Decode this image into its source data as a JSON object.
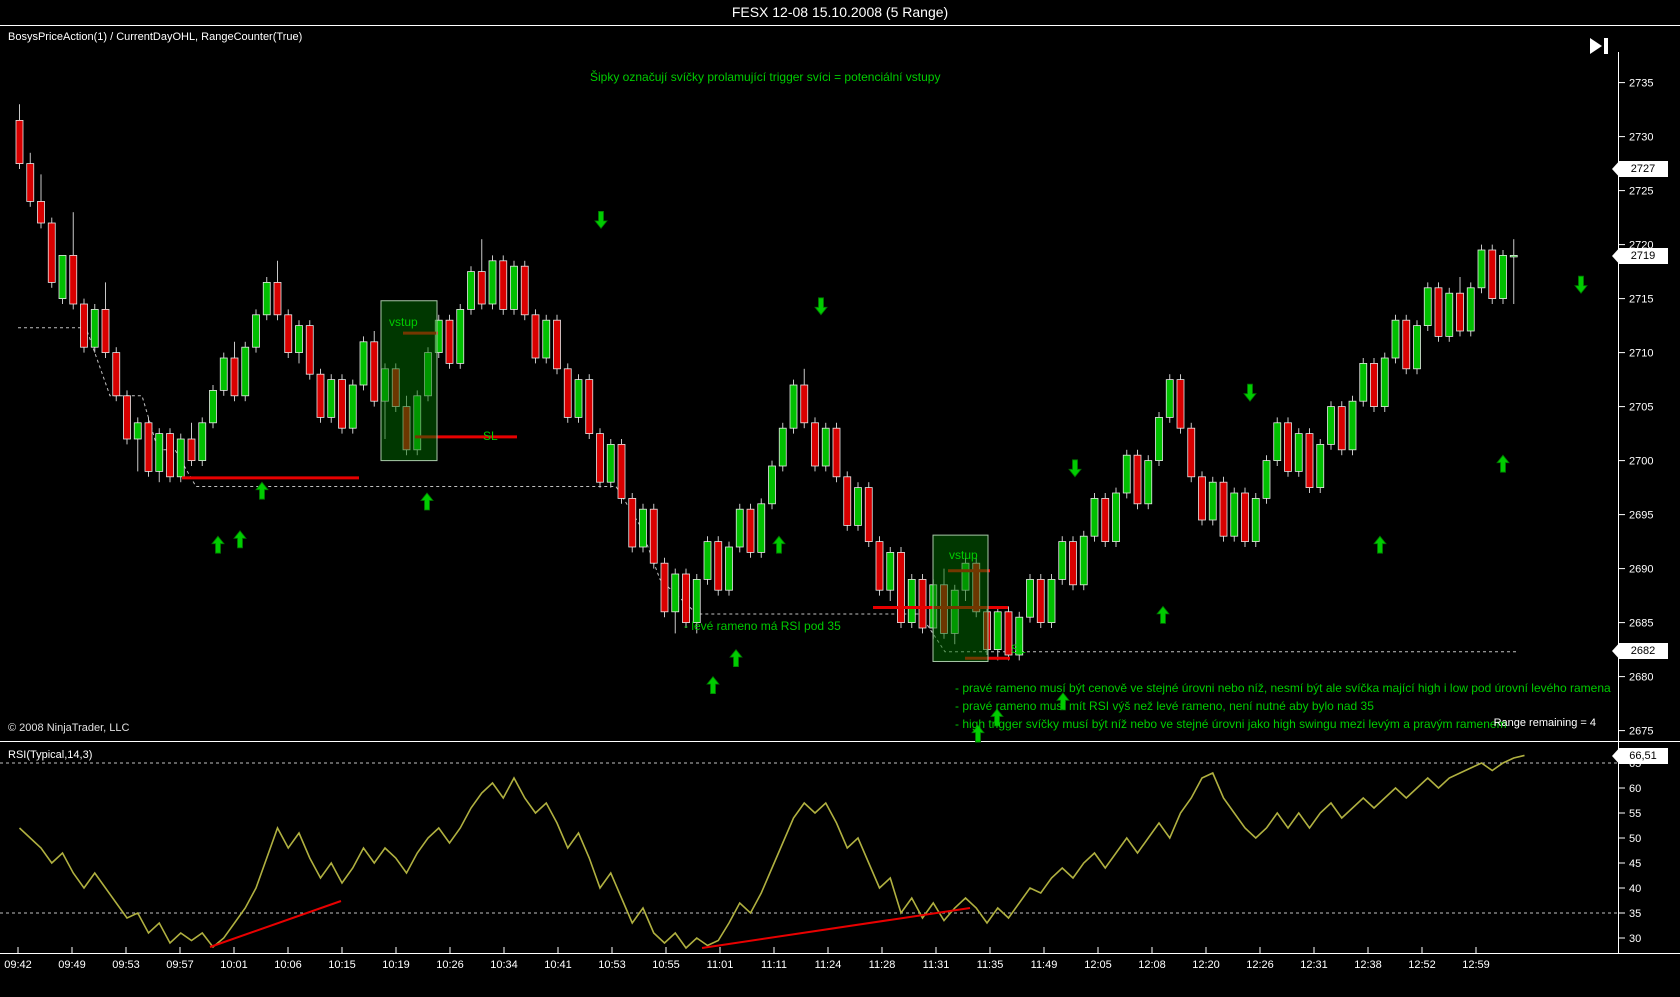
{
  "window": {
    "title": "FESX 12-08  15.10.2008 (5 Range)"
  },
  "toolbar": {
    "indicators_label": "BosysPriceAction(1) / CurrentDayOHL, RangeCounter(True)",
    "go_to_end_icon": "skip-to-end"
  },
  "annotations": {
    "arrows_note": "Šipky označují svíčky prolamující trigger svíci = potenciální vstupy",
    "left_shoulder_note": "- levé rameno má RSI pod 35",
    "rules": [
      "- pravé rameno musí být cenově ve stejné úrovni nebo níž, nesmí být ale svíčka mající high i low pod úrovní levého ramena",
      "- pravé rameno musí mít RSI výš než levé rameno, není nutné aby bylo nad 35",
      "- high trigger svíčky musí být níž nebo ve stejné úrovni jako high swingu mezi levým a pravým ramenem"
    ],
    "entry_box_label": "vstup",
    "stop_loss_label": "SL",
    "range_remaining": "Range remaining = 4",
    "copyright": "© 2008 NinjaTrader, LLC"
  },
  "price_axis": {
    "ticks": [
      2735,
      2730,
      2725,
      2720,
      2715,
      2710,
      2705,
      2700,
      2695,
      2690,
      2685,
      2680,
      2675
    ],
    "tags": {
      "open": "2727",
      "last": "2719",
      "low": "2682"
    }
  },
  "time_axis": {
    "labels": [
      "09:42",
      "09:49",
      "09:53",
      "09:57",
      "10:01",
      "10:06",
      "10:15",
      "10:19",
      "10:26",
      "10:34",
      "10:41",
      "10:53",
      "10:55",
      "11:01",
      "11:11",
      "11:24",
      "11:28",
      "11:31",
      "11:35",
      "11:49",
      "12:05",
      "12:08",
      "12:20",
      "12:26",
      "12:31",
      "12:38",
      "12:52",
      "12:59"
    ]
  },
  "rsi_panel": {
    "label": "RSI(Typical,14,3)",
    "ticks": [
      65,
      60,
      55,
      50,
      45,
      40,
      35,
      30
    ],
    "tag": "66,51",
    "dashed_levels": [
      65,
      35
    ]
  },
  "colors": {
    "background": "#000000",
    "up_candle": "#00C000",
    "down_candle": "#D80000",
    "wick": "#C8C8C8",
    "candle_border": "#E8E8E8",
    "annotation_green": "#00CC00",
    "rsi_line": "#B0B040",
    "red_line": "#E80000",
    "box_fill": "rgba(0,110,0,0.5)",
    "box_border": "#A8C8A8",
    "dashed_line": "#C0C0C0",
    "axis_text": "#FFFFFF",
    "tag_bg": "#FFFFFF",
    "tag_text": "#000000"
  },
  "chart_data": {
    "type": "candlestick",
    "title": "FESX 12-08  15.10.2008 (5 Range)",
    "main": {
      "ylabel": "price",
      "ylim": [
        2675,
        2735
      ],
      "grid": false,
      "ohlc": [
        [
          2731.5,
          2733,
          2727,
          2727.5
        ],
        [
          2727.5,
          2728.5,
          2723.5,
          2724
        ],
        [
          2724,
          2726.5,
          2721.5,
          2722
        ],
        [
          2722,
          2722.5,
          2716,
          2716.5
        ],
        [
          2715,
          2719,
          2714.5,
          2719
        ],
        [
          2719,
          2723,
          2714,
          2714.5
        ],
        [
          2714.5,
          2715,
          2710,
          2710.5
        ],
        [
          2710.5,
          2714.5,
          2710,
          2714
        ],
        [
          2714,
          2716.5,
          2709.5,
          2710
        ],
        [
          2710,
          2710.5,
          2705.5,
          2706
        ],
        [
          2706,
          2706.5,
          2701.5,
          2702
        ],
        [
          2702,
          2704,
          2699,
          2703.5
        ],
        [
          2703.5,
          2704,
          2698.5,
          2699
        ],
        [
          2699,
          2703,
          2698,
          2702.5
        ],
        [
          2702.5,
          2703,
          2698,
          2698.5
        ],
        [
          2698.5,
          2702.5,
          2698,
          2702
        ],
        [
          2702,
          2703.5,
          2699.5,
          2700
        ],
        [
          2700,
          2704,
          2699.5,
          2703.5
        ],
        [
          2703.5,
          2707,
          2703,
          2706.5
        ],
        [
          2706.5,
          2710,
          2706,
          2709.5
        ],
        [
          2709.5,
          2711,
          2705.5,
          2706
        ],
        [
          2706,
          2711,
          2705.5,
          2710.5
        ],
        [
          2710.5,
          2714,
          2710,
          2713.5
        ],
        [
          2713.5,
          2717,
          2713,
          2716.5
        ],
        [
          2716.5,
          2718.5,
          2713,
          2713.5
        ],
        [
          2713.5,
          2714,
          2709.5,
          2710
        ],
        [
          2710,
          2713,
          2709,
          2712.5
        ],
        [
          2712.5,
          2713,
          2707.5,
          2708
        ],
        [
          2708,
          2708.5,
          2703.5,
          2704
        ],
        [
          2704,
          2708,
          2703.5,
          2707.5
        ],
        [
          2707.5,
          2708,
          2702.5,
          2703
        ],
        [
          2703,
          2707.5,
          2702.5,
          2707
        ],
        [
          2707,
          2711.5,
          2706.5,
          2711
        ],
        [
          2711,
          2712,
          2705,
          2705.5
        ],
        [
          2705.5,
          2709,
          2702,
          2708.5
        ],
        [
          2708.5,
          2709,
          2704.5,
          2705
        ],
        [
          2705,
          2706,
          2700.5,
          2701
        ],
        [
          2701,
          2706.5,
          2700.5,
          2706
        ],
        [
          2706,
          2710.5,
          2705.5,
          2710
        ],
        [
          2710,
          2713.5,
          2709.5,
          2713
        ],
        [
          2713,
          2713.5,
          2708.5,
          2709
        ],
        [
          2709,
          2714.5,
          2708.5,
          2714
        ],
        [
          2714,
          2718,
          2713.5,
          2717.5
        ],
        [
          2717.5,
          2720.5,
          2714,
          2714.5
        ],
        [
          2714.5,
          2719,
          2714,
          2718.5
        ],
        [
          2718.5,
          2719,
          2713.5,
          2714
        ],
        [
          2714,
          2718.5,
          2713.5,
          2718
        ],
        [
          2718,
          2718.5,
          2713,
          2713.5
        ],
        [
          2713.5,
          2714,
          2709,
          2709.5
        ],
        [
          2709.5,
          2713.5,
          2709,
          2713
        ],
        [
          2713,
          2713.5,
          2708,
          2708.5
        ],
        [
          2708.5,
          2709,
          2703.5,
          2704
        ],
        [
          2704,
          2708,
          2703.5,
          2707.5
        ],
        [
          2707.5,
          2708,
          2702,
          2702.5
        ],
        [
          2702.5,
          2703,
          2697.5,
          2698
        ],
        [
          2698,
          2702,
          2697.5,
          2701.5
        ],
        [
          2701.5,
          2702,
          2696,
          2696.5
        ],
        [
          2696.5,
          2697,
          2691.5,
          2692
        ],
        [
          2692,
          2696,
          2691.5,
          2695.5
        ],
        [
          2695.5,
          2696,
          2690,
          2690.5
        ],
        [
          2690.5,
          2691,
          2685.5,
          2686
        ],
        [
          2686,
          2690,
          2684,
          2689.5
        ],
        [
          2689.5,
          2690,
          2684.5,
          2685
        ],
        [
          2685,
          2689.5,
          2684,
          2689
        ],
        [
          2689,
          2693,
          2688.5,
          2692.5
        ],
        [
          2692.5,
          2693,
          2687.5,
          2688
        ],
        [
          2688,
          2692.5,
          2687.5,
          2692
        ],
        [
          2692,
          2696,
          2691.5,
          2695.5
        ],
        [
          2695.5,
          2696,
          2691,
          2691.5
        ],
        [
          2691.5,
          2696.5,
          2691,
          2696
        ],
        [
          2696,
          2700,
          2695.5,
          2699.5
        ],
        [
          2699.5,
          2703.5,
          2699,
          2703
        ],
        [
          2703,
          2707.5,
          2702.5,
          2707
        ],
        [
          2707,
          2708.5,
          2703,
          2703.5
        ],
        [
          2703.5,
          2704,
          2699,
          2699.5
        ],
        [
          2699.5,
          2703.5,
          2699,
          2703
        ],
        [
          2703,
          2703.5,
          2698,
          2698.5
        ],
        [
          2698.5,
          2699,
          2693.5,
          2694
        ],
        [
          2694,
          2698,
          2693.5,
          2697.5
        ],
        [
          2697.5,
          2698,
          2692,
          2692.5
        ],
        [
          2692.5,
          2693,
          2687.5,
          2688
        ],
        [
          2688,
          2692,
          2687,
          2691.5
        ],
        [
          2691.5,
          2692,
          2684.5,
          2685
        ],
        [
          2685,
          2689.5,
          2684.5,
          2689
        ],
        [
          2689,
          2689.5,
          2684,
          2684.5
        ],
        [
          2684.5,
          2689,
          2683.5,
          2688.5
        ],
        [
          2688.5,
          2690,
          2683.5,
          2684
        ],
        [
          2684,
          2688.5,
          2683,
          2688
        ],
        [
          2688,
          2691,
          2687,
          2690.5
        ],
        [
          2690.5,
          2691,
          2685.5,
          2686
        ],
        [
          2686,
          2686.5,
          2682,
          2682.5
        ],
        [
          2682.5,
          2686.5,
          2681.5,
          2686
        ],
        [
          2686,
          2686.5,
          2681.5,
          2682
        ],
        [
          2682,
          2686,
          2681.5,
          2685.5
        ],
        [
          2685.5,
          2689.5,
          2685,
          2689
        ],
        [
          2689,
          2689.5,
          2684.5,
          2685
        ],
        [
          2685,
          2689.5,
          2684.5,
          2689
        ],
        [
          2689,
          2693,
          2688.5,
          2692.5
        ],
        [
          2692.5,
          2693,
          2688,
          2688.5
        ],
        [
          2688.5,
          2693.5,
          2688,
          2693
        ],
        [
          2693,
          2697,
          2692.5,
          2696.5
        ],
        [
          2696.5,
          2697,
          2692,
          2692.5
        ],
        [
          2692.5,
          2697.5,
          2692,
          2697
        ],
        [
          2697,
          2701,
          2696.5,
          2700.5
        ],
        [
          2700.5,
          2701,
          2695.5,
          2696
        ],
        [
          2696,
          2700.5,
          2695.5,
          2700
        ],
        [
          2700,
          2704.5,
          2699.5,
          2704
        ],
        [
          2704,
          2708,
          2703.5,
          2707.5
        ],
        [
          2707.5,
          2708,
          2702.5,
          2703
        ],
        [
          2703,
          2703.5,
          2698,
          2698.5
        ],
        [
          2698.5,
          2699,
          2694,
          2694.5
        ],
        [
          2694.5,
          2698.5,
          2694,
          2698
        ],
        [
          2698,
          2698.5,
          2692.5,
          2693
        ],
        [
          2693,
          2697.5,
          2692.5,
          2697
        ],
        [
          2697,
          2697.5,
          2692,
          2692.5
        ],
        [
          2692.5,
          2697,
          2692,
          2696.5
        ],
        [
          2696.5,
          2700.5,
          2696,
          2700
        ],
        [
          2700,
          2704,
          2699.5,
          2703.5
        ],
        [
          2703.5,
          2704,
          2698.5,
          2699
        ],
        [
          2699,
          2703,
          2698.5,
          2702.5
        ],
        [
          2702.5,
          2703,
          2697,
          2697.5
        ],
        [
          2697.5,
          2702,
          2697,
          2701.5
        ],
        [
          2701.5,
          2705.5,
          2701,
          2705
        ],
        [
          2705,
          2705.5,
          2700.5,
          2701
        ],
        [
          2701,
          2706,
          2700.5,
          2705.5
        ],
        [
          2705.5,
          2709.5,
          2705,
          2709
        ],
        [
          2709,
          2709.5,
          2704.5,
          2705
        ],
        [
          2705,
          2710,
          2704.5,
          2709.5
        ],
        [
          2709.5,
          2713.5,
          2709,
          2713
        ],
        [
          2713,
          2713.5,
          2708,
          2708.5
        ],
        [
          2708.5,
          2713,
          2708,
          2712.5
        ],
        [
          2712.5,
          2716.5,
          2712,
          2716
        ],
        [
          2716,
          2716.5,
          2711,
          2711.5
        ],
        [
          2711.5,
          2716,
          2711,
          2715.5
        ],
        [
          2715.5,
          2717,
          2711.5,
          2712
        ],
        [
          2712,
          2716.5,
          2711.5,
          2716
        ],
        [
          2716,
          2720,
          2715.5,
          2719.5
        ],
        [
          2719.5,
          2720,
          2714.5,
          2715
        ],
        [
          2715,
          2719.5,
          2714.5,
          2719
        ],
        [
          2719,
          2720.5,
          2714.5,
          2719
        ]
      ]
    },
    "rsi": {
      "name": "RSI(Typical,14,3)",
      "last_value": 66.51,
      "ylim": [
        28,
        67
      ],
      "values": [
        52,
        50,
        48,
        45,
        47,
        43,
        40,
        43,
        40,
        37,
        34,
        35,
        31,
        33,
        29,
        31,
        29.5,
        31,
        28.2,
        30,
        33,
        36,
        40,
        46,
        52,
        48,
        51,
        46,
        42,
        45,
        41,
        44,
        48,
        45,
        48,
        46,
        43,
        47,
        50,
        52,
        49,
        52,
        56,
        59,
        61,
        58,
        62,
        58,
        55,
        57,
        53,
        48,
        51,
        46,
        40,
        43,
        38,
        33,
        36,
        31,
        29,
        31,
        28,
        30,
        28.5,
        29.5,
        33,
        37,
        35,
        39,
        44,
        49,
        54,
        57,
        55,
        57,
        53,
        48,
        50,
        45,
        40,
        42,
        35,
        38,
        34,
        37,
        33.5,
        36,
        38,
        36,
        33,
        36,
        34,
        37,
        40,
        39,
        42,
        44,
        42,
        45,
        47,
        44,
        47,
        50,
        47,
        50,
        53,
        50,
        55,
        58,
        62,
        63,
        58,
        55,
        52,
        50,
        52,
        55,
        52,
        55,
        52,
        55,
        57,
        54,
        56,
        58,
        56,
        58,
        60,
        58,
        60,
        62,
        60,
        62,
        63,
        64,
        65,
        63.5,
        65,
        66,
        66.51
      ]
    },
    "overlays": {
      "entry_boxes": [
        {
          "x": 381,
          "width": 56,
          "price_top": 2714.8,
          "price_bottom": 2700,
          "label": "vstup"
        },
        {
          "x": 933,
          "width": 55,
          "price_top": 2693.1,
          "price_bottom": 2681.4,
          "label": "vstup"
        }
      ],
      "red_lines": [
        [
          182,
          359,
          2698.4
        ],
        [
          403,
          438,
          2711.8
        ],
        [
          415,
          517,
          2702.2
        ],
        [
          873,
          1008,
          2686.4
        ],
        [
          948,
          990,
          2689.8
        ],
        [
          965,
          1010,
          2681.7
        ]
      ],
      "day_low_polyline": [
        [
          18,
          2712.3
        ],
        [
          86,
          2712.3
        ],
        [
          110,
          2706
        ],
        [
          142,
          2706
        ],
        [
          158,
          2701
        ],
        [
          175,
          2701
        ],
        [
          196,
          2697.6
        ],
        [
          616,
          2697.6
        ],
        [
          640,
          2694
        ],
        [
          660,
          2689
        ],
        [
          697,
          2685.8
        ],
        [
          920,
          2685.8
        ],
        [
          945,
          2682.3
        ],
        [
          1516,
          2682.3
        ]
      ],
      "arrows_up": [
        [
          218,
          2693
        ],
        [
          240,
          2693.5
        ],
        [
          262,
          2698
        ],
        [
          427,
          2697
        ],
        [
          713,
          2680
        ],
        [
          736,
          2682.5
        ],
        [
          779,
          2693
        ],
        [
          978,
          2675.5
        ],
        [
          997,
          2677
        ],
        [
          1063,
          2678.5
        ],
        [
          1163,
          2686.5
        ],
        [
          1380,
          2693
        ],
        [
          1503,
          2700.5
        ]
      ],
      "arrows_down": [
        [
          601,
          2721.5
        ],
        [
          821,
          2713.5
        ],
        [
          1075,
          2698.5
        ],
        [
          1250,
          2705.5
        ],
        [
          1581,
          2715.5
        ]
      ],
      "rsi_trendlines": [
        [
          210,
          28.2,
          341,
          37.4
        ],
        [
          702,
          28,
          970,
          36
        ]
      ]
    }
  }
}
